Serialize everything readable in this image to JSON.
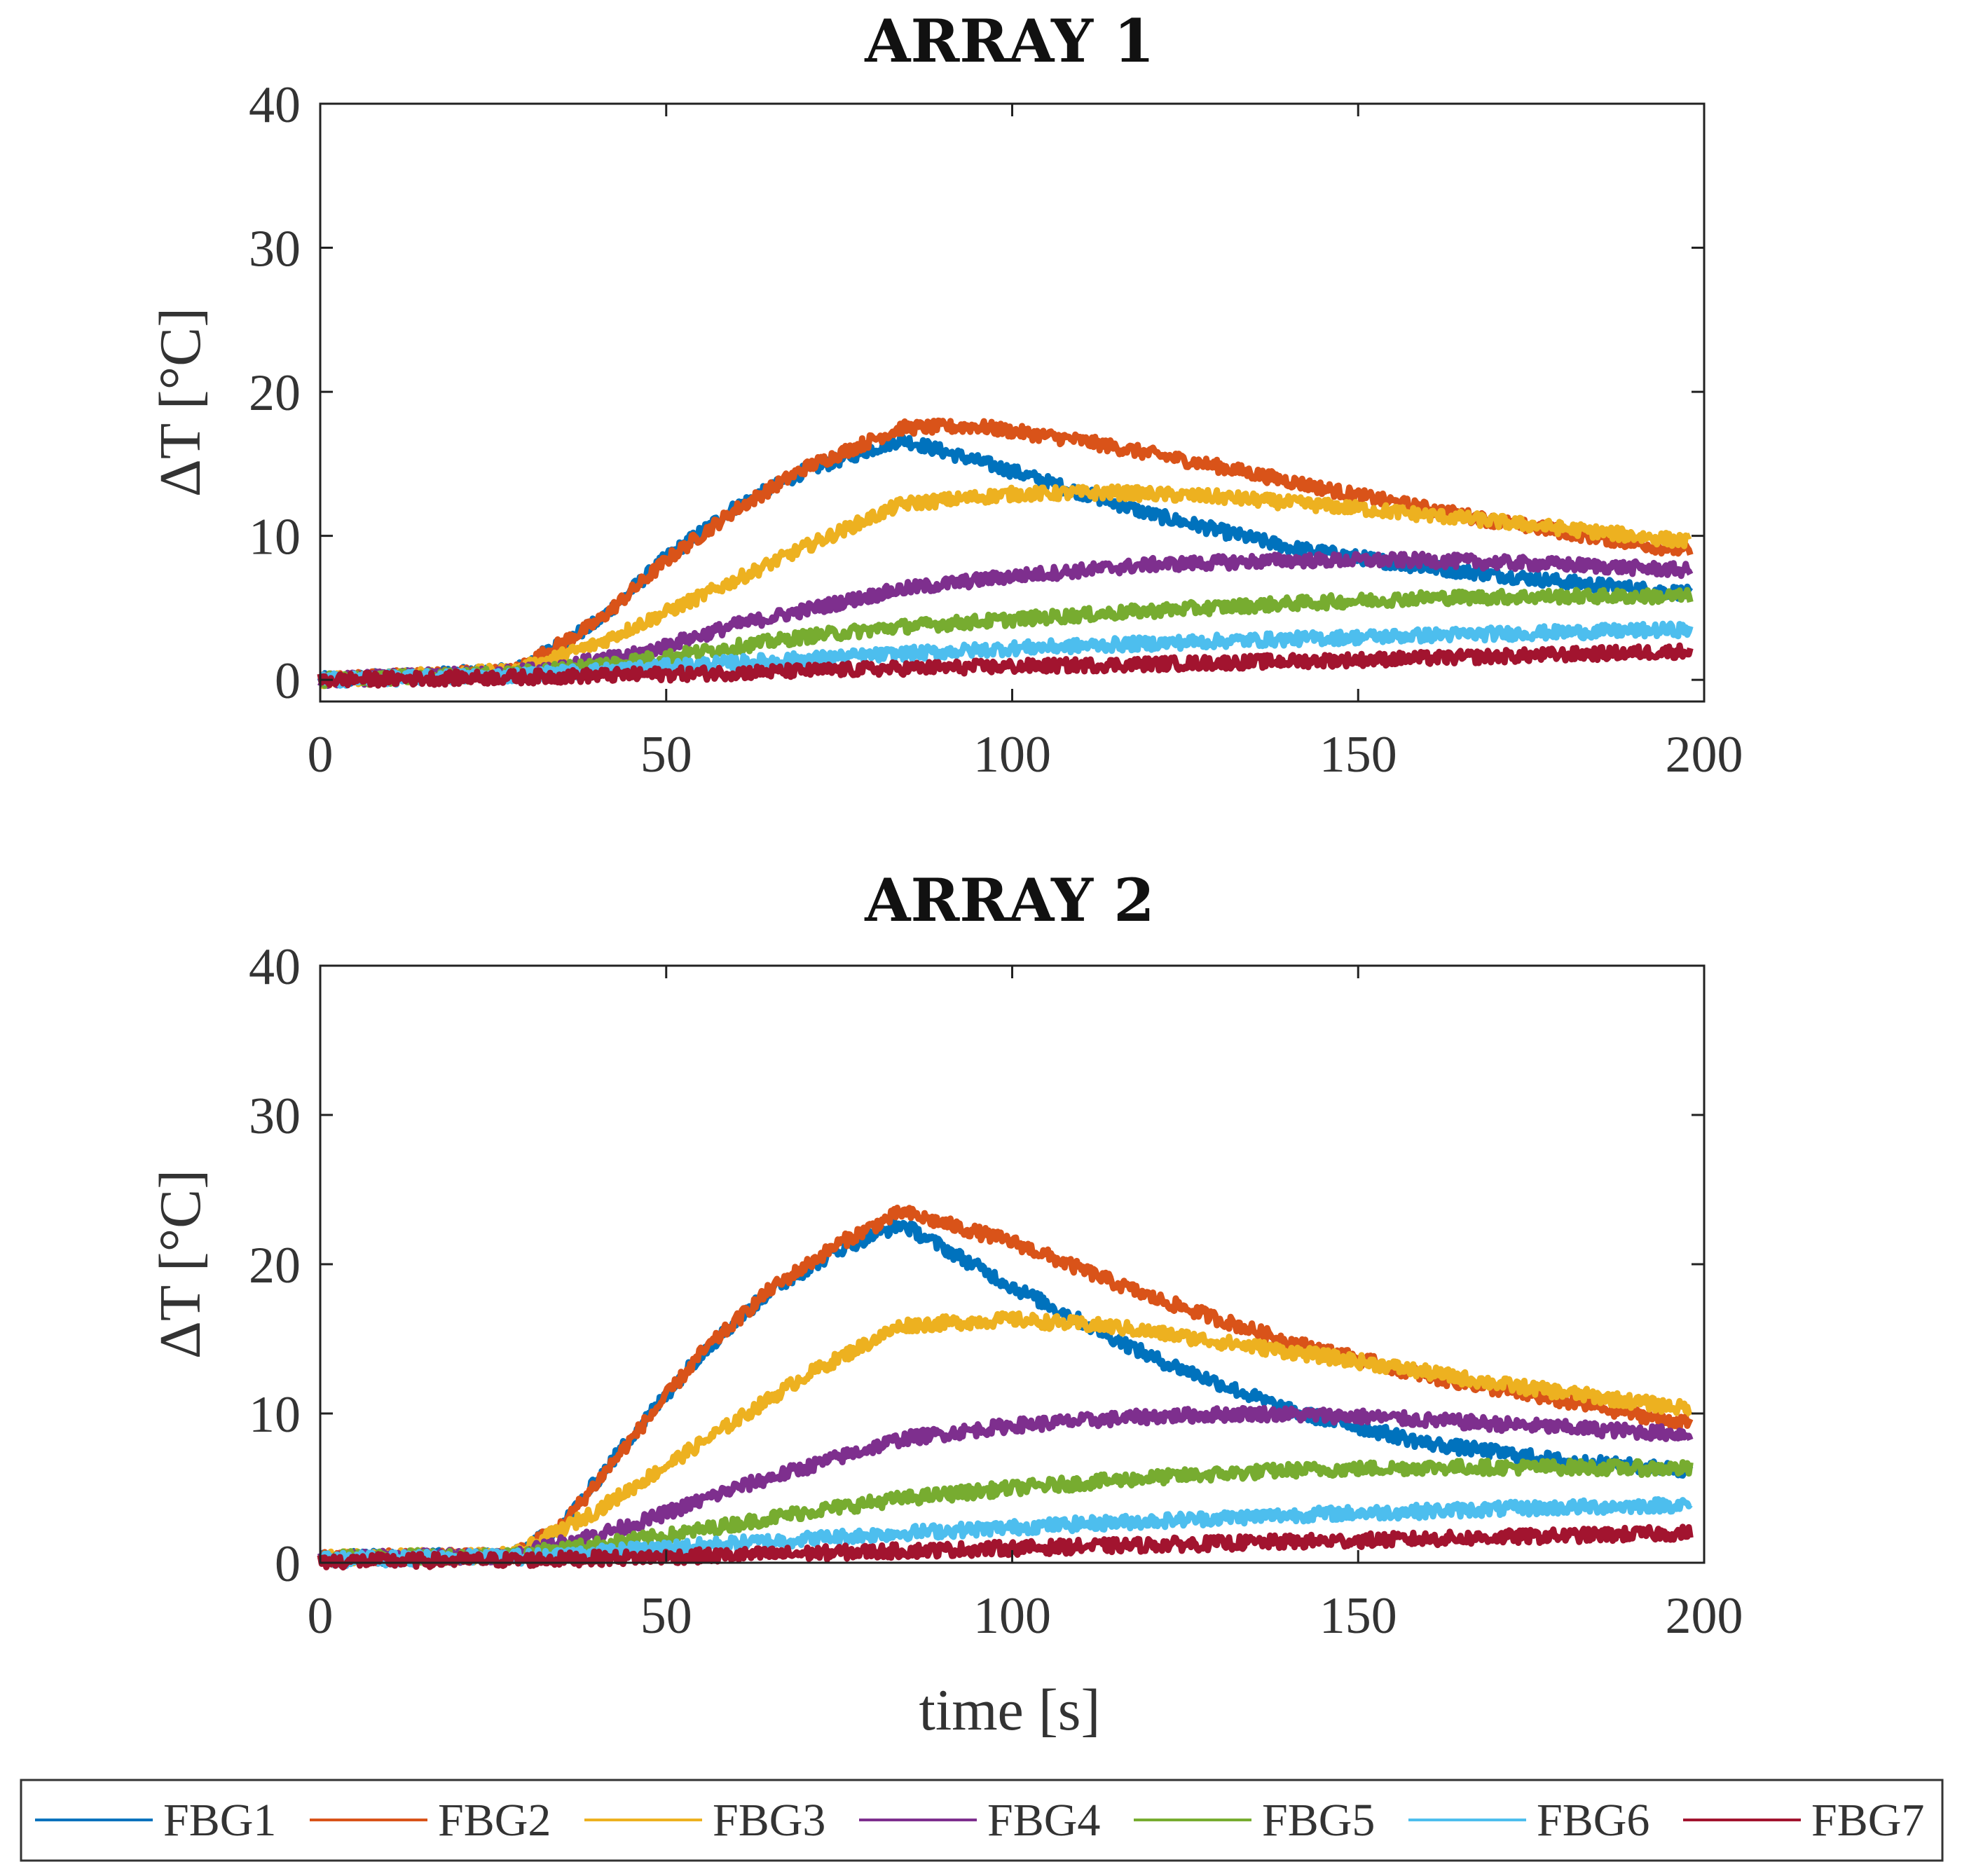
{
  "chart_data": [
    {
      "type": "line",
      "title": "ARRAY 1",
      "xlabel": "",
      "ylabel": "ΔT [°C]",
      "xlim": [
        0,
        200
      ],
      "ylim": [
        -1.5,
        40
      ],
      "xticks": [
        "0",
        "50",
        "100",
        "150",
        "200"
      ],
      "yticks": [
        "0",
        "10",
        "20",
        "30",
        "40"
      ],
      "series": [
        {
          "name": "FBG1",
          "color": "#0072BD",
          "points": [
            [
              0,
              0
            ],
            [
              28,
              0.6
            ],
            [
              40,
              4
            ],
            [
              50,
              8.5
            ],
            [
              60,
              12
            ],
            [
              70,
              14.5
            ],
            [
              84,
              16.7
            ],
            [
              100,
              14.5
            ],
            [
              120,
              11.5
            ],
            [
              140,
              9.2
            ],
            [
              160,
              7.8
            ],
            [
              180,
              6.8
            ],
            [
              198,
              6.0
            ]
          ]
        },
        {
          "name": "FBG2",
          "color": "#D95319",
          "points": [
            [
              0,
              0
            ],
            [
              28,
              0.6
            ],
            [
              40,
              4
            ],
            [
              50,
              8.3
            ],
            [
              60,
              11.8
            ],
            [
              70,
              14.7
            ],
            [
              84,
              17.5
            ],
            [
              95,
              17.6
            ],
            [
              110,
              16.6
            ],
            [
              130,
              14.8
            ],
            [
              150,
              12.8
            ],
            [
              170,
              11.0
            ],
            [
              198,
              8.9
            ]
          ]
        },
        {
          "name": "FBG3",
          "color": "#EDB120",
          "points": [
            [
              0,
              0
            ],
            [
              28,
              0.6
            ],
            [
              40,
              2.5
            ],
            [
              55,
              5.8
            ],
            [
              70,
              9.2
            ],
            [
              84,
              12.2
            ],
            [
              100,
              12.9
            ],
            [
              115,
              13.0
            ],
            [
              130,
              12.7
            ],
            [
              150,
              11.9
            ],
            [
              170,
              11.0
            ],
            [
              198,
              9.6
            ]
          ]
        },
        {
          "name": "FBG4",
          "color": "#7E2F8E",
          "points": [
            [
              0,
              0
            ],
            [
              28,
              0.5
            ],
            [
              45,
              1.7
            ],
            [
              60,
              3.8
            ],
            [
              84,
              6.3
            ],
            [
              100,
              7.2
            ],
            [
              120,
              8.0
            ],
            [
              140,
              8.3
            ],
            [
              160,
              8.3
            ],
            [
              180,
              8.0
            ],
            [
              198,
              7.6
            ]
          ]
        },
        {
          "name": "FBG5",
          "color": "#77AC30",
          "points": [
            [
              0,
              0
            ],
            [
              28,
              0.4
            ],
            [
              50,
              1.6
            ],
            [
              70,
              3.0
            ],
            [
              84,
              3.7
            ],
            [
              100,
              4.2
            ],
            [
              120,
              4.8
            ],
            [
              140,
              5.3
            ],
            [
              160,
              5.7
            ],
            [
              180,
              5.8
            ],
            [
              198,
              5.8
            ]
          ]
        },
        {
          "name": "FBG6",
          "color": "#4DBEEE",
          "points": [
            [
              0,
              0
            ],
            [
              28,
              0.3
            ],
            [
              60,
              1.2
            ],
            [
              84,
              1.8
            ],
            [
              100,
              2.2
            ],
            [
              130,
              2.7
            ],
            [
              160,
              3.1
            ],
            [
              198,
              3.5
            ]
          ]
        },
        {
          "name": "FBG7",
          "color": "#A2142F",
          "points": [
            [
              0,
              0
            ],
            [
              30,
              0.2
            ],
            [
              60,
              0.5
            ],
            [
              84,
              0.8
            ],
            [
              120,
              1.1
            ],
            [
              160,
              1.5
            ],
            [
              198,
              2.0
            ]
          ]
        }
      ]
    },
    {
      "type": "line",
      "title": "ARRAY 2",
      "xlabel": "time [s]",
      "ylabel": "ΔT [°C]",
      "xlim": [
        0,
        200
      ],
      "ylim": [
        0,
        40
      ],
      "xticks": [
        "0",
        "50",
        "100",
        "150",
        "200"
      ],
      "yticks": [
        "0",
        "10",
        "20",
        "30",
        "40"
      ],
      "series": [
        {
          "name": "FBG1",
          "color": "#0072BD",
          "points": [
            [
              0,
              0.3
            ],
            [
              28,
              0.5
            ],
            [
              35,
              2.5
            ],
            [
              45,
              8.5
            ],
            [
              55,
              14
            ],
            [
              65,
              18.2
            ],
            [
              75,
              21
            ],
            [
              84,
              22.7
            ],
            [
              100,
              18.5
            ],
            [
              120,
              13.8
            ],
            [
              140,
              10.2
            ],
            [
              160,
              8.0
            ],
            [
              180,
              6.8
            ],
            [
              198,
              6.2
            ]
          ]
        },
        {
          "name": "FBG2",
          "color": "#D95319",
          "points": [
            [
              0,
              0.3
            ],
            [
              28,
              0.5
            ],
            [
              35,
              2.5
            ],
            [
              45,
              8.3
            ],
            [
              55,
              14
            ],
            [
              65,
              18.3
            ],
            [
              75,
              21.4
            ],
            [
              84,
              23.5
            ],
            [
              100,
              21.5
            ],
            [
              120,
              17.8
            ],
            [
              140,
              14.8
            ],
            [
              160,
              12.5
            ],
            [
              180,
              10.8
            ],
            [
              198,
              9.3
            ]
          ]
        },
        {
          "name": "FBG3",
          "color": "#EDB120",
          "points": [
            [
              0,
              0.3
            ],
            [
              28,
              0.5
            ],
            [
              40,
              3.5
            ],
            [
              55,
              8
            ],
            [
              70,
              12.5
            ],
            [
              84,
              15.9
            ],
            [
              100,
              16.3
            ],
            [
              115,
              15.8
            ],
            [
              130,
              14.8
            ],
            [
              150,
              13.5
            ],
            [
              170,
              12.0
            ],
            [
              198,
              10.3
            ]
          ]
        },
        {
          "name": "FBG4",
          "color": "#7E2F8E",
          "points": [
            [
              0,
              0.3
            ],
            [
              28,
              0.5
            ],
            [
              45,
              2.5
            ],
            [
              60,
              5
            ],
            [
              84,
              8.3
            ],
            [
              100,
              9.2
            ],
            [
              120,
              9.8
            ],
            [
              135,
              10.0
            ],
            [
              150,
              9.8
            ],
            [
              170,
              9.3
            ],
            [
              198,
              8.6
            ]
          ]
        },
        {
          "name": "FBG5",
          "color": "#77AC30",
          "points": [
            [
              0,
              0.3
            ],
            [
              28,
              0.5
            ],
            [
              50,
              1.8
            ],
            [
              70,
              3.4
            ],
            [
              84,
              4.3
            ],
            [
              100,
              5.0
            ],
            [
              120,
              5.7
            ],
            [
              140,
              6.2
            ],
            [
              160,
              6.4
            ],
            [
              180,
              6.4
            ],
            [
              198,
              6.3
            ]
          ]
        },
        {
          "name": "FBG6",
          "color": "#4DBEEE",
          "points": [
            [
              0,
              0.2
            ],
            [
              30,
              0.4
            ],
            [
              60,
              1.3
            ],
            [
              84,
              2.0
            ],
            [
              110,
              2.6
            ],
            [
              140,
              3.2
            ],
            [
              170,
              3.6
            ],
            [
              198,
              3.9
            ]
          ]
        },
        {
          "name": "FBG7",
          "color": "#A2142F",
          "points": [
            [
              0,
              0.1
            ],
            [
              30,
              0.2
            ],
            [
              60,
              0.5
            ],
            [
              84,
              0.8
            ],
            [
              120,
              1.2
            ],
            [
              160,
              1.6
            ],
            [
              198,
              2.0
            ]
          ]
        }
      ]
    }
  ],
  "legend": {
    "location": "bottom",
    "items": [
      {
        "label": "FBG1",
        "color": "#0072BD"
      },
      {
        "label": "FBG2",
        "color": "#D95319"
      },
      {
        "label": "FBG3",
        "color": "#EDB120"
      },
      {
        "label": "FBG4",
        "color": "#7E2F8E"
      },
      {
        "label": "FBG5",
        "color": "#77AC30"
      },
      {
        "label": "FBG6",
        "color": "#4DBEEE"
      },
      {
        "label": "FBG7",
        "color": "#A2142F"
      }
    ]
  }
}
